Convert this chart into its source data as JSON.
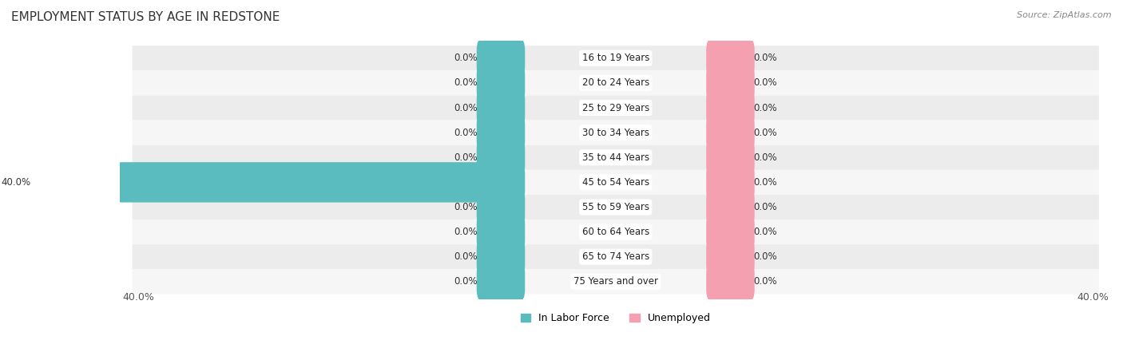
{
  "title": "EMPLOYMENT STATUS BY AGE IN REDSTONE",
  "source": "Source: ZipAtlas.com",
  "categories": [
    "16 to 19 Years",
    "20 to 24 Years",
    "25 to 29 Years",
    "30 to 34 Years",
    "35 to 44 Years",
    "45 to 54 Years",
    "55 to 59 Years",
    "60 to 64 Years",
    "65 to 74 Years",
    "75 Years and over"
  ],
  "in_labor_force": [
    0.0,
    0.0,
    0.0,
    0.0,
    0.0,
    40.0,
    0.0,
    0.0,
    0.0,
    0.0
  ],
  "unemployed": [
    0.0,
    0.0,
    0.0,
    0.0,
    0.0,
    0.0,
    0.0,
    0.0,
    0.0,
    0.0
  ],
  "max_value": 40.0,
  "color_labor": "#5bbcbf",
  "color_unemployed": "#f4a0b0",
  "background_color": "#ffffff",
  "label_fontsize": 8.5,
  "title_fontsize": 11,
  "legend_fontsize": 9,
  "axis_label_fontsize": 9,
  "row_colors": [
    "#ececec",
    "#f6f6f6"
  ]
}
